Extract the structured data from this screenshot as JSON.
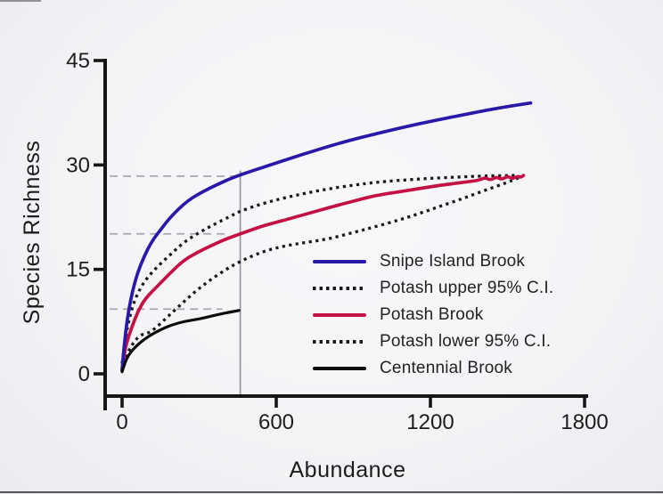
{
  "chart_data": {
    "type": "line",
    "title": "",
    "xlabel": "Abundance",
    "ylabel": "Species Richness",
    "xlim": [
      0,
      1800
    ],
    "ylim": [
      0,
      45
    ],
    "grid": false,
    "legend_position": "inside-right-lower",
    "xticks": [
      0,
      600,
      1200,
      1800
    ],
    "yticks": [
      0,
      15,
      30,
      45
    ],
    "xtick_labels": [
      "0",
      "600",
      "1200",
      "1800"
    ],
    "ytick_labels": [
      "0",
      "15",
      "30",
      "45"
    ],
    "axis_color": "#161616",
    "series": [
      {
        "name": "Snipe Island Brook",
        "style": "solid",
        "color": "#2a18a8",
        "points": [
          [
            0,
            0.5
          ],
          [
            6,
            3.2
          ],
          [
            14,
            6
          ],
          [
            25,
            9
          ],
          [
            40,
            11.8
          ],
          [
            60,
            14.5
          ],
          [
            85,
            16.8
          ],
          [
            115,
            19
          ],
          [
            150,
            20.7
          ],
          [
            190,
            22.6
          ],
          [
            255,
            24.9
          ],
          [
            320,
            26.3
          ],
          [
            400,
            27.7
          ],
          [
            460,
            28.6
          ],
          [
            560,
            29.8
          ],
          [
            700,
            31.5
          ],
          [
            850,
            33.2
          ],
          [
            1000,
            34.6
          ],
          [
            1150,
            35.9
          ],
          [
            1300,
            37
          ],
          [
            1450,
            38.1
          ],
          [
            1590,
            38.9
          ]
        ]
      },
      {
        "name": "Potash upper 95% C.I.",
        "style": "dotted",
        "color": "#1a1a1a",
        "points": [
          [
            0,
            1.5
          ],
          [
            12,
            5
          ],
          [
            28,
            8
          ],
          [
            48,
            10.5
          ],
          [
            72,
            12.4
          ],
          [
            100,
            13.9
          ],
          [
            140,
            15.5
          ],
          [
            190,
            17.2
          ],
          [
            240,
            18.9
          ],
          [
            300,
            20.3
          ],
          [
            360,
            21.5
          ],
          [
            420,
            22.6
          ],
          [
            460,
            23.4
          ],
          [
            550,
            24.5
          ],
          [
            635,
            25.3
          ],
          [
            720,
            26
          ],
          [
            808,
            26.6
          ],
          [
            900,
            27.1
          ],
          [
            982,
            27.5
          ],
          [
            1155,
            28
          ],
          [
            1328,
            28.3
          ],
          [
            1440,
            28.45
          ],
          [
            1540,
            28.5
          ]
        ]
      },
      {
        "name": "Potash Brook",
        "style": "solid",
        "color": "#c41045",
        "points": [
          [
            0,
            0.5
          ],
          [
            8,
            2.8
          ],
          [
            20,
            4.8
          ],
          [
            40,
            6.9
          ],
          [
            62,
            9
          ],
          [
            90,
            10.8
          ],
          [
            132,
            12.4
          ],
          [
            180,
            14.2
          ],
          [
            236,
            16.2
          ],
          [
            290,
            17.4
          ],
          [
            340,
            18.3
          ],
          [
            400,
            19.3
          ],
          [
            460,
            20.1
          ],
          [
            550,
            21.3
          ],
          [
            635,
            22.1
          ],
          [
            720,
            23
          ],
          [
            808,
            23.9
          ],
          [
            900,
            24.8
          ],
          [
            982,
            25.6
          ],
          [
            1070,
            26.1
          ],
          [
            1155,
            26.6
          ],
          [
            1240,
            27.1
          ],
          [
            1328,
            27.5
          ],
          [
            1390,
            27.8
          ],
          [
            1412,
            28.2
          ],
          [
            1434,
            27.8
          ],
          [
            1456,
            28.3
          ],
          [
            1478,
            27.9
          ],
          [
            1500,
            28.4
          ],
          [
            1520,
            28.0
          ],
          [
            1540,
            28.4
          ],
          [
            1552,
            28.2
          ],
          [
            1562,
            28.5
          ]
        ]
      },
      {
        "name": "Potash lower 95% C.I.",
        "style": "dotted",
        "color": "#1a1a1a",
        "points": [
          [
            0,
            0.5
          ],
          [
            15,
            2.5
          ],
          [
            40,
            4.3
          ],
          [
            70,
            5.6
          ],
          [
            100,
            5.8
          ],
          [
            132,
            6.6
          ],
          [
            180,
            8.3
          ],
          [
            236,
            10.2
          ],
          [
            290,
            12
          ],
          [
            340,
            13.4
          ],
          [
            400,
            14.9
          ],
          [
            461,
            16.2
          ],
          [
            550,
            17.6
          ],
          [
            635,
            18.4
          ],
          [
            720,
            18.9
          ],
          [
            808,
            19.4
          ],
          [
            900,
            20.3
          ],
          [
            982,
            21.1
          ],
          [
            1070,
            22
          ],
          [
            1155,
            23
          ],
          [
            1240,
            24.1
          ],
          [
            1328,
            25.2
          ],
          [
            1415,
            26.4
          ],
          [
            1470,
            27.1
          ],
          [
            1520,
            27.8
          ],
          [
            1552,
            28.3
          ]
        ]
      },
      {
        "name": "Centennial Brook",
        "style": "solid",
        "color": "#0d0d0d",
        "points": [
          [
            0,
            0.3
          ],
          [
            10,
            1.5
          ],
          [
            25,
            2.7
          ],
          [
            45,
            3.6
          ],
          [
            70,
            4.5
          ],
          [
            100,
            5.3
          ],
          [
            132,
            6
          ],
          [
            165,
            6.6
          ],
          [
            200,
            7.1
          ],
          [
            250,
            7.6
          ],
          [
            305,
            7.9
          ],
          [
            360,
            8.4
          ],
          [
            410,
            8.8
          ],
          [
            455,
            9.1
          ]
        ]
      }
    ],
    "annotations": {
      "reference_color": "#9a9aa3",
      "vertical_line": {
        "x": 460,
        "y_top": 29.2
      },
      "horizontal_dashed_lines": [
        {
          "y": 28.4,
          "x_from": -48,
          "x_to": 452
        },
        {
          "y": 20.1,
          "x_from": -48,
          "x_to": 418
        },
        {
          "y": 9.3,
          "x_from": -48,
          "x_to": 390
        }
      ]
    }
  }
}
